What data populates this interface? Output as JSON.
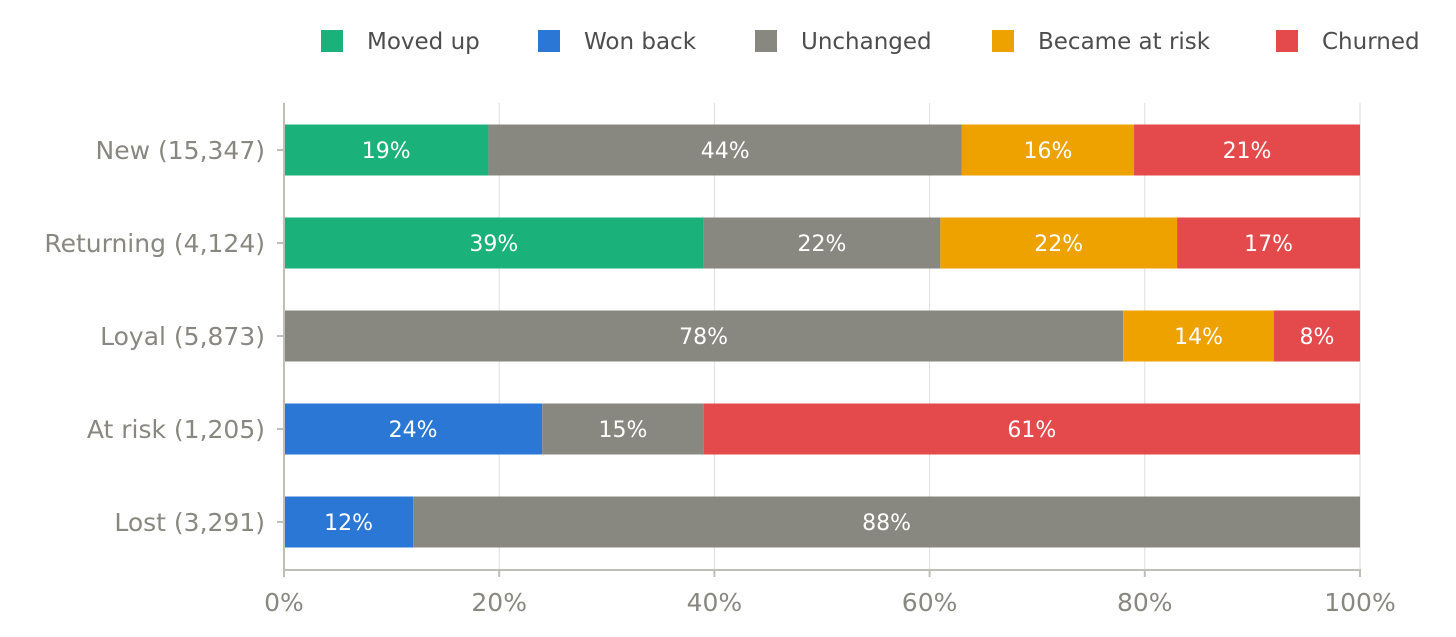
{
  "chart_data": {
    "type": "bar",
    "orientation": "horizontal",
    "stacked": true,
    "categories": [
      "New (15,347)",
      "Returning (4,124)",
      "Loyal (5,873)",
      "At risk (1,205)",
      "Lost (3,291)"
    ],
    "series": [
      {
        "name": "Moved up",
        "color": "#1bb17b",
        "values": [
          19,
          39,
          0,
          0,
          0
        ]
      },
      {
        "name": "Won back",
        "color": "#2b77d6",
        "values": [
          0,
          0,
          0,
          24,
          12
        ]
      },
      {
        "name": "Unchanged",
        "color": "#898880",
        "values": [
          44,
          22,
          78,
          15,
          88
        ]
      },
      {
        "name": "Became at risk",
        "color": "#eda200",
        "values": [
          16,
          22,
          14,
          0,
          0
        ]
      },
      {
        "name": "Churned",
        "color": "#e44a4b",
        "values": [
          21,
          17,
          8,
          61,
          0
        ]
      }
    ],
    "xlim": [
      0,
      100
    ],
    "xticks": [
      "0%",
      "20%",
      "40%",
      "60%",
      "80%",
      "100%"
    ],
    "value_format": "percent",
    "grid": "vertical",
    "legend": "top"
  }
}
